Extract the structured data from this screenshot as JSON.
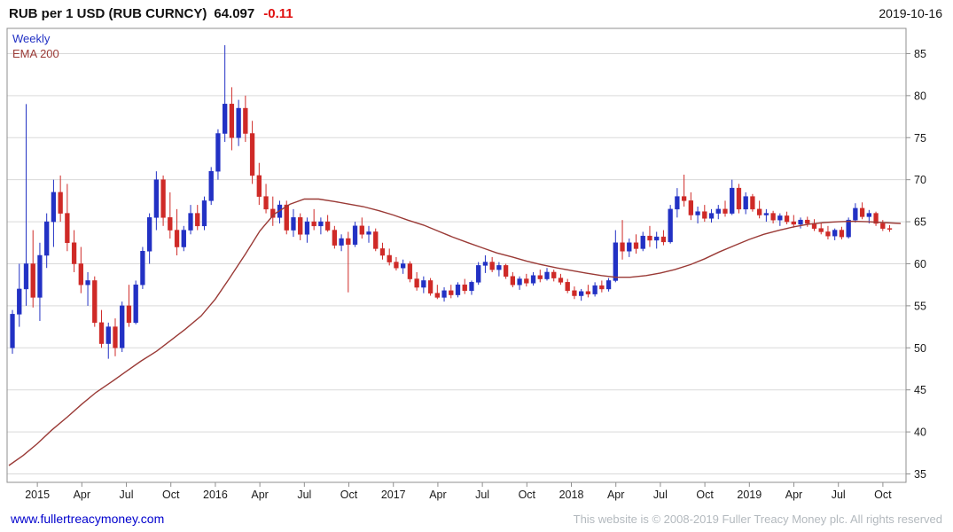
{
  "header": {
    "title": "RUB per 1 USD (RUB CURNCY)",
    "last_price": "64.097",
    "change": "-0.11",
    "date": "2019-10-16"
  },
  "legend": {
    "timeframe": "Weekly",
    "overlay": "EMA 200"
  },
  "footer": {
    "link": "www.fullertreacymoney.com",
    "copyright": "This website is © 2008-2019 Fuller Treacy Money plc. All rights reserved"
  },
  "colors": {
    "up_candle": "#2231c4",
    "down_candle": "#cf2a27",
    "ema_line": "#9a3a36",
    "grid": "#d9d9d9",
    "frame": "#8f8f8f",
    "axis_text": "#1a1a1a",
    "weekly_label": "#2231c4",
    "ema_label": "#9a3a36",
    "change_text": "#e01010",
    "link": "#0000cd",
    "copyright": "#b3b9be"
  },
  "chart_data": {
    "type": "candlestick",
    "title": "RUB per 1 USD (RUB CURNCY)",
    "interval": "Weekly",
    "overlay": "EMA 200 (red line)",
    "last_close": 64.097,
    "change": -0.11,
    "as_of": "2019-10-16",
    "ylim": [
      34,
      88
    ],
    "xlim": [
      2014.83,
      2019.88
    ],
    "grid": "horizontal",
    "y_ticks": [
      35,
      40,
      45,
      50,
      55,
      60,
      65,
      70,
      75,
      80,
      85
    ],
    "x_ticks": [
      {
        "t": 2015.0,
        "label": "2015"
      },
      {
        "t": 2015.25,
        "label": "Apr"
      },
      {
        "t": 2015.5,
        "label": "Jul"
      },
      {
        "t": 2015.75,
        "label": "Oct"
      },
      {
        "t": 2016.0,
        "label": "2016"
      },
      {
        "t": 2016.25,
        "label": "Apr"
      },
      {
        "t": 2016.5,
        "label": "Jul"
      },
      {
        "t": 2016.75,
        "label": "Oct"
      },
      {
        "t": 2017.0,
        "label": "2017"
      },
      {
        "t": 2017.25,
        "label": "Apr"
      },
      {
        "t": 2017.5,
        "label": "Jul"
      },
      {
        "t": 2017.75,
        "label": "Oct"
      },
      {
        "t": 2018.0,
        "label": "2018"
      },
      {
        "t": 2018.25,
        "label": "Apr"
      },
      {
        "t": 2018.5,
        "label": "Jul"
      },
      {
        "t": 2018.75,
        "label": "Oct"
      },
      {
        "t": 2019.0,
        "label": "2019"
      },
      {
        "t": 2019.25,
        "label": "Apr"
      },
      {
        "t": 2019.5,
        "label": "Jul"
      },
      {
        "t": 2019.75,
        "label": "Oct"
      }
    ],
    "t0": 2014.86,
    "dt": 0.0385,
    "candles": [
      [
        50.0,
        54.5,
        49.3,
        54.0
      ],
      [
        54.0,
        60.0,
        52.5,
        57.0
      ],
      [
        57.0,
        79.0,
        55.0,
        60.0
      ],
      [
        60.0,
        64.0,
        54.8,
        56.0
      ],
      [
        56.0,
        62.5,
        53.2,
        61.0
      ],
      [
        61.0,
        66.0,
        59.5,
        65.0
      ],
      [
        65.0,
        70.0,
        62.0,
        68.5
      ],
      [
        68.5,
        70.5,
        65.0,
        66.0
      ],
      [
        66.0,
        69.5,
        61.5,
        62.5
      ],
      [
        62.5,
        64.0,
        59.0,
        60.0
      ],
      [
        60.0,
        62.0,
        56.5,
        57.5
      ],
      [
        57.5,
        59.0,
        55.0,
        58.0
      ],
      [
        58.0,
        58.5,
        52.5,
        53.0
      ],
      [
        53.0,
        54.5,
        50.0,
        50.5
      ],
      [
        50.5,
        53.0,
        48.7,
        52.5
      ],
      [
        52.5,
        53.5,
        49.0,
        50.0
      ],
      [
        50.0,
        55.5,
        49.5,
        55.0
      ],
      [
        55.0,
        57.5,
        52.5,
        53.0
      ],
      [
        53.0,
        58.0,
        52.8,
        57.5
      ],
      [
        57.5,
        62.0,
        57.0,
        61.5
      ],
      [
        61.5,
        66.0,
        60.0,
        65.5
      ],
      [
        65.5,
        71.0,
        64.0,
        70.0
      ],
      [
        70.0,
        70.5,
        64.5,
        65.5
      ],
      [
        65.5,
        68.5,
        63.0,
        64.0
      ],
      [
        64.0,
        66.5,
        61.0,
        62.0
      ],
      [
        62.0,
        64.5,
        61.5,
        64.0
      ],
      [
        64.0,
        67.0,
        63.5,
        66.0
      ],
      [
        66.0,
        67.0,
        64.0,
        64.5
      ],
      [
        64.5,
        68.0,
        64.0,
        67.5
      ],
      [
        67.5,
        71.5,
        67.0,
        71.0
      ],
      [
        71.0,
        76.0,
        70.0,
        75.5
      ],
      [
        75.5,
        86.0,
        74.5,
        79.0
      ],
      [
        79.0,
        81.0,
        73.5,
        75.0
      ],
      [
        75.0,
        79.5,
        74.0,
        78.5
      ],
      [
        78.5,
        80.0,
        74.5,
        75.5
      ],
      [
        75.5,
        77.0,
        69.5,
        70.5
      ],
      [
        70.5,
        72.0,
        67.0,
        68.0
      ],
      [
        68.0,
        69.5,
        66.0,
        66.5
      ],
      [
        66.5,
        68.0,
        64.5,
        65.5
      ],
      [
        65.5,
        67.5,
        64.8,
        67.0
      ],
      [
        67.0,
        67.5,
        63.5,
        64.0
      ],
      [
        64.0,
        66.5,
        63.2,
        65.5
      ],
      [
        65.5,
        66.0,
        62.8,
        63.5
      ],
      [
        63.5,
        65.5,
        62.5,
        65.0
      ],
      [
        65.0,
        66.5,
        64.0,
        64.5
      ],
      [
        64.5,
        65.5,
        63.5,
        65.0
      ],
      [
        65.0,
        65.8,
        63.8,
        64.0
      ],
      [
        64.0,
        64.5,
        61.8,
        62.2
      ],
      [
        62.2,
        63.5,
        61.5,
        63.0
      ],
      [
        63.0,
        63.8,
        56.6,
        62.3
      ],
      [
        62.3,
        65.0,
        62.0,
        64.5
      ],
      [
        64.5,
        65.5,
        63.0,
        63.5
      ],
      [
        63.5,
        64.5,
        62.5,
        63.8
      ],
      [
        63.8,
        64.2,
        61.5,
        61.8
      ],
      [
        61.8,
        62.5,
        60.5,
        61.0
      ],
      [
        61.0,
        61.8,
        59.8,
        60.2
      ],
      [
        60.2,
        60.8,
        59.2,
        59.5
      ],
      [
        59.5,
        60.5,
        58.8,
        60.0
      ],
      [
        60.0,
        60.3,
        57.8,
        58.2
      ],
      [
        58.2,
        59.0,
        56.8,
        57.2
      ],
      [
        57.2,
        58.5,
        56.5,
        58.0
      ],
      [
        58.0,
        58.3,
        56.2,
        56.5
      ],
      [
        56.5,
        57.5,
        55.8,
        56.0
      ],
      [
        56.0,
        57.2,
        55.5,
        56.8
      ],
      [
        56.8,
        57.5,
        55.9,
        56.3
      ],
      [
        56.3,
        57.8,
        56.0,
        57.5
      ],
      [
        57.5,
        58.2,
        56.4,
        56.8
      ],
      [
        56.8,
        58.0,
        56.3,
        57.8
      ],
      [
        57.8,
        60.2,
        57.5,
        59.8
      ],
      [
        59.8,
        61.0,
        58.9,
        60.2
      ],
      [
        60.2,
        60.8,
        59.0,
        59.3
      ],
      [
        59.3,
        60.2,
        58.5,
        59.8
      ],
      [
        59.8,
        60.0,
        58.2,
        58.5
      ],
      [
        58.5,
        59.0,
        57.2,
        57.5
      ],
      [
        57.5,
        58.5,
        56.9,
        58.2
      ],
      [
        58.2,
        58.8,
        57.3,
        57.7
      ],
      [
        57.7,
        59.0,
        57.4,
        58.6
      ],
      [
        58.6,
        59.3,
        57.8,
        58.2
      ],
      [
        58.2,
        59.5,
        58.0,
        59.0
      ],
      [
        59.0,
        59.3,
        57.9,
        58.3
      ],
      [
        58.3,
        58.8,
        57.5,
        57.8
      ],
      [
        57.8,
        58.2,
        56.5,
        56.8
      ],
      [
        56.8,
        57.3,
        55.8,
        56.2
      ],
      [
        56.2,
        57.0,
        55.6,
        56.7
      ],
      [
        56.7,
        57.5,
        56.0,
        56.4
      ],
      [
        56.4,
        57.8,
        56.1,
        57.4
      ],
      [
        57.4,
        58.0,
        56.6,
        57.0
      ],
      [
        57.0,
        58.3,
        56.7,
        58.0
      ],
      [
        58.0,
        64.0,
        57.8,
        62.5
      ],
      [
        62.5,
        65.2,
        60.5,
        61.5
      ],
      [
        61.5,
        63.0,
        60.8,
        62.5
      ],
      [
        62.5,
        63.5,
        61.2,
        61.8
      ],
      [
        61.8,
        63.8,
        61.5,
        63.3
      ],
      [
        63.3,
        64.5,
        62.0,
        62.8
      ],
      [
        62.8,
        63.8,
        61.8,
        63.2
      ],
      [
        63.2,
        64.0,
        62.2,
        62.6
      ],
      [
        62.6,
        67.0,
        62.4,
        66.5
      ],
      [
        66.5,
        69.0,
        65.5,
        68.0
      ],
      [
        68.0,
        70.6,
        66.8,
        67.5
      ],
      [
        67.5,
        68.5,
        65.2,
        65.8
      ],
      [
        65.8,
        66.8,
        64.8,
        66.2
      ],
      [
        66.2,
        67.0,
        65.0,
        65.4
      ],
      [
        65.4,
        66.5,
        64.9,
        66.0
      ],
      [
        66.0,
        67.0,
        65.3,
        66.5
      ],
      [
        66.5,
        67.5,
        65.6,
        66.0
      ],
      [
        66.0,
        70.0,
        65.8,
        69.0
      ],
      [
        69.0,
        69.5,
        66.0,
        66.5
      ],
      [
        66.5,
        68.5,
        65.9,
        68.0
      ],
      [
        68.0,
        68.3,
        66.2,
        66.5
      ],
      [
        66.5,
        67.5,
        65.4,
        65.8
      ],
      [
        65.8,
        66.5,
        65.0,
        66.0
      ],
      [
        66.0,
        66.3,
        64.8,
        65.2
      ],
      [
        65.2,
        66.0,
        64.5,
        65.7
      ],
      [
        65.7,
        66.2,
        64.7,
        65.0
      ],
      [
        65.0,
        65.8,
        64.3,
        64.7
      ],
      [
        64.7,
        65.5,
        64.2,
        65.2
      ],
      [
        65.2,
        65.6,
        64.4,
        64.8
      ],
      [
        64.8,
        65.3,
        63.9,
        64.2
      ],
      [
        64.2,
        64.8,
        63.5,
        63.8
      ],
      [
        63.8,
        64.5,
        62.9,
        63.3
      ],
      [
        63.3,
        64.2,
        62.8,
        64.0
      ],
      [
        64.0,
        64.4,
        62.9,
        63.2
      ],
      [
        63.2,
        65.5,
        63.0,
        65.2
      ],
      [
        65.2,
        67.2,
        64.9,
        66.6
      ],
      [
        66.6,
        67.3,
        65.3,
        65.6
      ],
      [
        65.6,
        66.4,
        64.8,
        66.0
      ],
      [
        66.0,
        66.2,
        64.5,
        64.8
      ],
      [
        64.8,
        65.2,
        63.9,
        64.2
      ],
      [
        64.2,
        64.6,
        63.8,
        64.1
      ]
    ],
    "ema": [
      [
        2014.84,
        36.0
      ],
      [
        2014.92,
        37.2
      ],
      [
        2015.0,
        38.6
      ],
      [
        2015.08,
        40.2
      ],
      [
        2015.17,
        41.8
      ],
      [
        2015.25,
        43.3
      ],
      [
        2015.33,
        44.7
      ],
      [
        2015.42,
        46.0
      ],
      [
        2015.5,
        47.2
      ],
      [
        2015.58,
        48.4
      ],
      [
        2015.67,
        49.6
      ],
      [
        2015.75,
        50.9
      ],
      [
        2015.83,
        52.2
      ],
      [
        2015.92,
        53.8
      ],
      [
        2016.0,
        55.8
      ],
      [
        2016.08,
        58.3
      ],
      [
        2016.17,
        61.2
      ],
      [
        2016.25,
        63.9
      ],
      [
        2016.33,
        65.9
      ],
      [
        2016.42,
        67.1
      ],
      [
        2016.5,
        67.7
      ],
      [
        2016.58,
        67.7
      ],
      [
        2016.67,
        67.4
      ],
      [
        2016.75,
        67.1
      ],
      [
        2016.83,
        66.8
      ],
      [
        2016.92,
        66.3
      ],
      [
        2017.0,
        65.8
      ],
      [
        2017.08,
        65.2
      ],
      [
        2017.17,
        64.6
      ],
      [
        2017.25,
        63.9
      ],
      [
        2017.33,
        63.2
      ],
      [
        2017.42,
        62.5
      ],
      [
        2017.5,
        61.9
      ],
      [
        2017.58,
        61.3
      ],
      [
        2017.67,
        60.8
      ],
      [
        2017.75,
        60.3
      ],
      [
        2017.83,
        59.9
      ],
      [
        2017.92,
        59.5
      ],
      [
        2018.0,
        59.2
      ],
      [
        2018.08,
        58.9
      ],
      [
        2018.17,
        58.6
      ],
      [
        2018.25,
        58.4
      ],
      [
        2018.33,
        58.4
      ],
      [
        2018.42,
        58.6
      ],
      [
        2018.5,
        58.9
      ],
      [
        2018.58,
        59.3
      ],
      [
        2018.67,
        59.9
      ],
      [
        2018.75,
        60.6
      ],
      [
        2018.83,
        61.4
      ],
      [
        2018.92,
        62.2
      ],
      [
        2019.0,
        62.9
      ],
      [
        2019.08,
        63.5
      ],
      [
        2019.17,
        64.0
      ],
      [
        2019.25,
        64.4
      ],
      [
        2019.33,
        64.7
      ],
      [
        2019.42,
        64.9
      ],
      [
        2019.5,
        65.0
      ],
      [
        2019.58,
        65.05
      ],
      [
        2019.67,
        65.0
      ],
      [
        2019.75,
        64.9
      ],
      [
        2019.85,
        64.8
      ]
    ]
  }
}
